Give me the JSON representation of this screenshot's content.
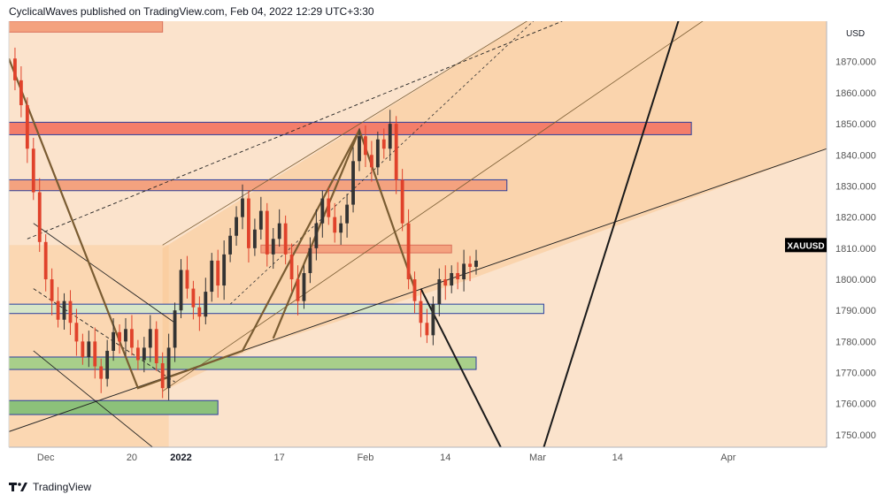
{
  "header": {
    "text": "CyclicalWaves published on TradingView.com, Feb 04, 2022 12:29 UTC+3:30"
  },
  "footer": {
    "brand": "TradingView"
  },
  "chart_data": {
    "type": "candlestick",
    "symbol": "XAUUSD",
    "currency": "USD",
    "last_price_label": "XAUUSD",
    "y_ticks": [
      "1870.000",
      "1860.000",
      "1850.000",
      "1840.000",
      "1830.000",
      "1820.000",
      "1810.000",
      "1800.000",
      "1790.000",
      "1780.000",
      "1770.000",
      "1760.000",
      "1750.000"
    ],
    "y_tick_values": [
      1870,
      1860,
      1850,
      1840,
      1830,
      1820,
      1810,
      1800,
      1790,
      1780,
      1770,
      1760,
      1750
    ],
    "ylim": [
      1746,
      1883
    ],
    "x_ticks": [
      {
        "label": "Dec",
        "bold": false,
        "day": 6
      },
      {
        "label": "20",
        "bold": false,
        "day": 20
      },
      {
        "label": "2022",
        "bold": true,
        "day": 28
      },
      {
        "label": "17",
        "bold": false,
        "day": 44
      },
      {
        "label": "Feb",
        "bold": false,
        "day": 58
      },
      {
        "label": "14",
        "bold": false,
        "day": 71
      },
      {
        "label": "Mar",
        "bold": false,
        "day": 86
      },
      {
        "label": "14",
        "bold": false,
        "day": 99
      },
      {
        "label": "Apr",
        "bold": false,
        "day": 117
      }
    ],
    "xlim": [
      0,
      133
    ],
    "price_path": [
      [
        0,
        1871
      ],
      [
        1,
        1864
      ],
      [
        2,
        1856
      ],
      [
        3,
        1842
      ],
      [
        4,
        1828
      ],
      [
        5,
        1812
      ],
      [
        6,
        1800
      ],
      [
        7,
        1793
      ],
      [
        8,
        1787
      ],
      [
        9,
        1793
      ],
      [
        10,
        1786
      ],
      [
        11,
        1780
      ],
      [
        12,
        1775
      ],
      [
        13,
        1780
      ],
      [
        14,
        1772
      ],
      [
        15,
        1768
      ],
      [
        16,
        1777
      ],
      [
        17,
        1783
      ],
      [
        18,
        1780
      ],
      [
        19,
        1784
      ],
      [
        20,
        1778
      ],
      [
        21,
        1774
      ],
      [
        22,
        1778
      ],
      [
        23,
        1784
      ],
      [
        24,
        1773
      ],
      [
        25,
        1765
      ],
      [
        26,
        1778
      ],
      [
        27,
        1790
      ],
      [
        28,
        1803
      ],
      [
        29,
        1797
      ],
      [
        30,
        1791
      ],
      [
        31,
        1788
      ],
      [
        32,
        1796
      ],
      [
        33,
        1806
      ],
      [
        34,
        1798
      ],
      [
        35,
        1808
      ],
      [
        36,
        1814
      ],
      [
        37,
        1820
      ],
      [
        38,
        1826
      ],
      [
        39,
        1810
      ],
      [
        40,
        1816
      ],
      [
        41,
        1822
      ],
      [
        42,
        1808
      ],
      [
        43,
        1813
      ],
      [
        44,
        1818
      ],
      [
        45,
        1808
      ],
      [
        46,
        1800
      ],
      [
        47,
        1793
      ],
      [
        48,
        1802
      ],
      [
        49,
        1810
      ],
      [
        50,
        1818
      ],
      [
        51,
        1826
      ],
      [
        52,
        1820
      ],
      [
        53,
        1815
      ],
      [
        54,
        1818
      ],
      [
        55,
        1824
      ],
      [
        56,
        1838
      ],
      [
        57,
        1846
      ],
      [
        58,
        1840
      ],
      [
        59,
        1836
      ],
      [
        60,
        1845
      ],
      [
        61,
        1842
      ],
      [
        62,
        1850
      ],
      [
        63,
        1832
      ],
      [
        64,
        1818
      ],
      [
        65,
        1800
      ],
      [
        66,
        1793
      ],
      [
        67,
        1786
      ],
      [
        68,
        1782
      ],
      [
        69,
        1792
      ],
      [
        70,
        1800
      ],
      [
        71,
        1798
      ],
      [
        72,
        1802
      ],
      [
        73,
        1800
      ],
      [
        74,
        1805
      ],
      [
        75,
        1804
      ],
      [
        76,
        1806
      ]
    ],
    "zones": [
      {
        "name": "zone-1882",
        "y1": 1879.5,
        "y2": 1883.0,
        "day1": 0,
        "day2": 25,
        "fill": "#f4a27f",
        "stroke": "#d9705a"
      },
      {
        "name": "zone-1850",
        "y1": 1846.5,
        "y2": 1850.5,
        "day1": 0,
        "day2": 111,
        "fill": "#f47e6a",
        "stroke": "#2b3f9e"
      },
      {
        "name": "zone-1830",
        "y1": 1828.5,
        "y2": 1832.0,
        "day1": 0,
        "day2": 81,
        "fill": "#f4a27f",
        "stroke": "#2b3f9e"
      },
      {
        "name": "zone-1810",
        "y1": 1808.5,
        "y2": 1811.0,
        "day1": 41,
        "day2": 72,
        "fill": "#f4a27f",
        "stroke": "#d9705a"
      },
      {
        "name": "zone-1791",
        "y1": 1789.0,
        "y2": 1792.0,
        "day1": 0,
        "day2": 87,
        "fill": "#d6e6c8",
        "stroke": "#2b3f9e"
      },
      {
        "name": "zone-1774",
        "y1": 1771.0,
        "y2": 1775.0,
        "day1": 0,
        "day2": 76,
        "fill": "#a8cf8a",
        "stroke": "#2b3f9e"
      },
      {
        "name": "zone-1759",
        "y1": 1756.5,
        "y2": 1761.0,
        "day1": 0,
        "day2": 34,
        "fill": "#8cc17a",
        "stroke": "#2b3f9e"
      }
    ],
    "colors": {
      "background": "#fbe3cc",
      "channel_fill": "#fac893",
      "candle_up": "#333333",
      "candle_down": "#e0422b",
      "wave_line": "#7a5c32",
      "projection_line": "#1a1a1a",
      "axis_text": "#555555",
      "price_label_bg": "#000000"
    },
    "grid": false
  }
}
